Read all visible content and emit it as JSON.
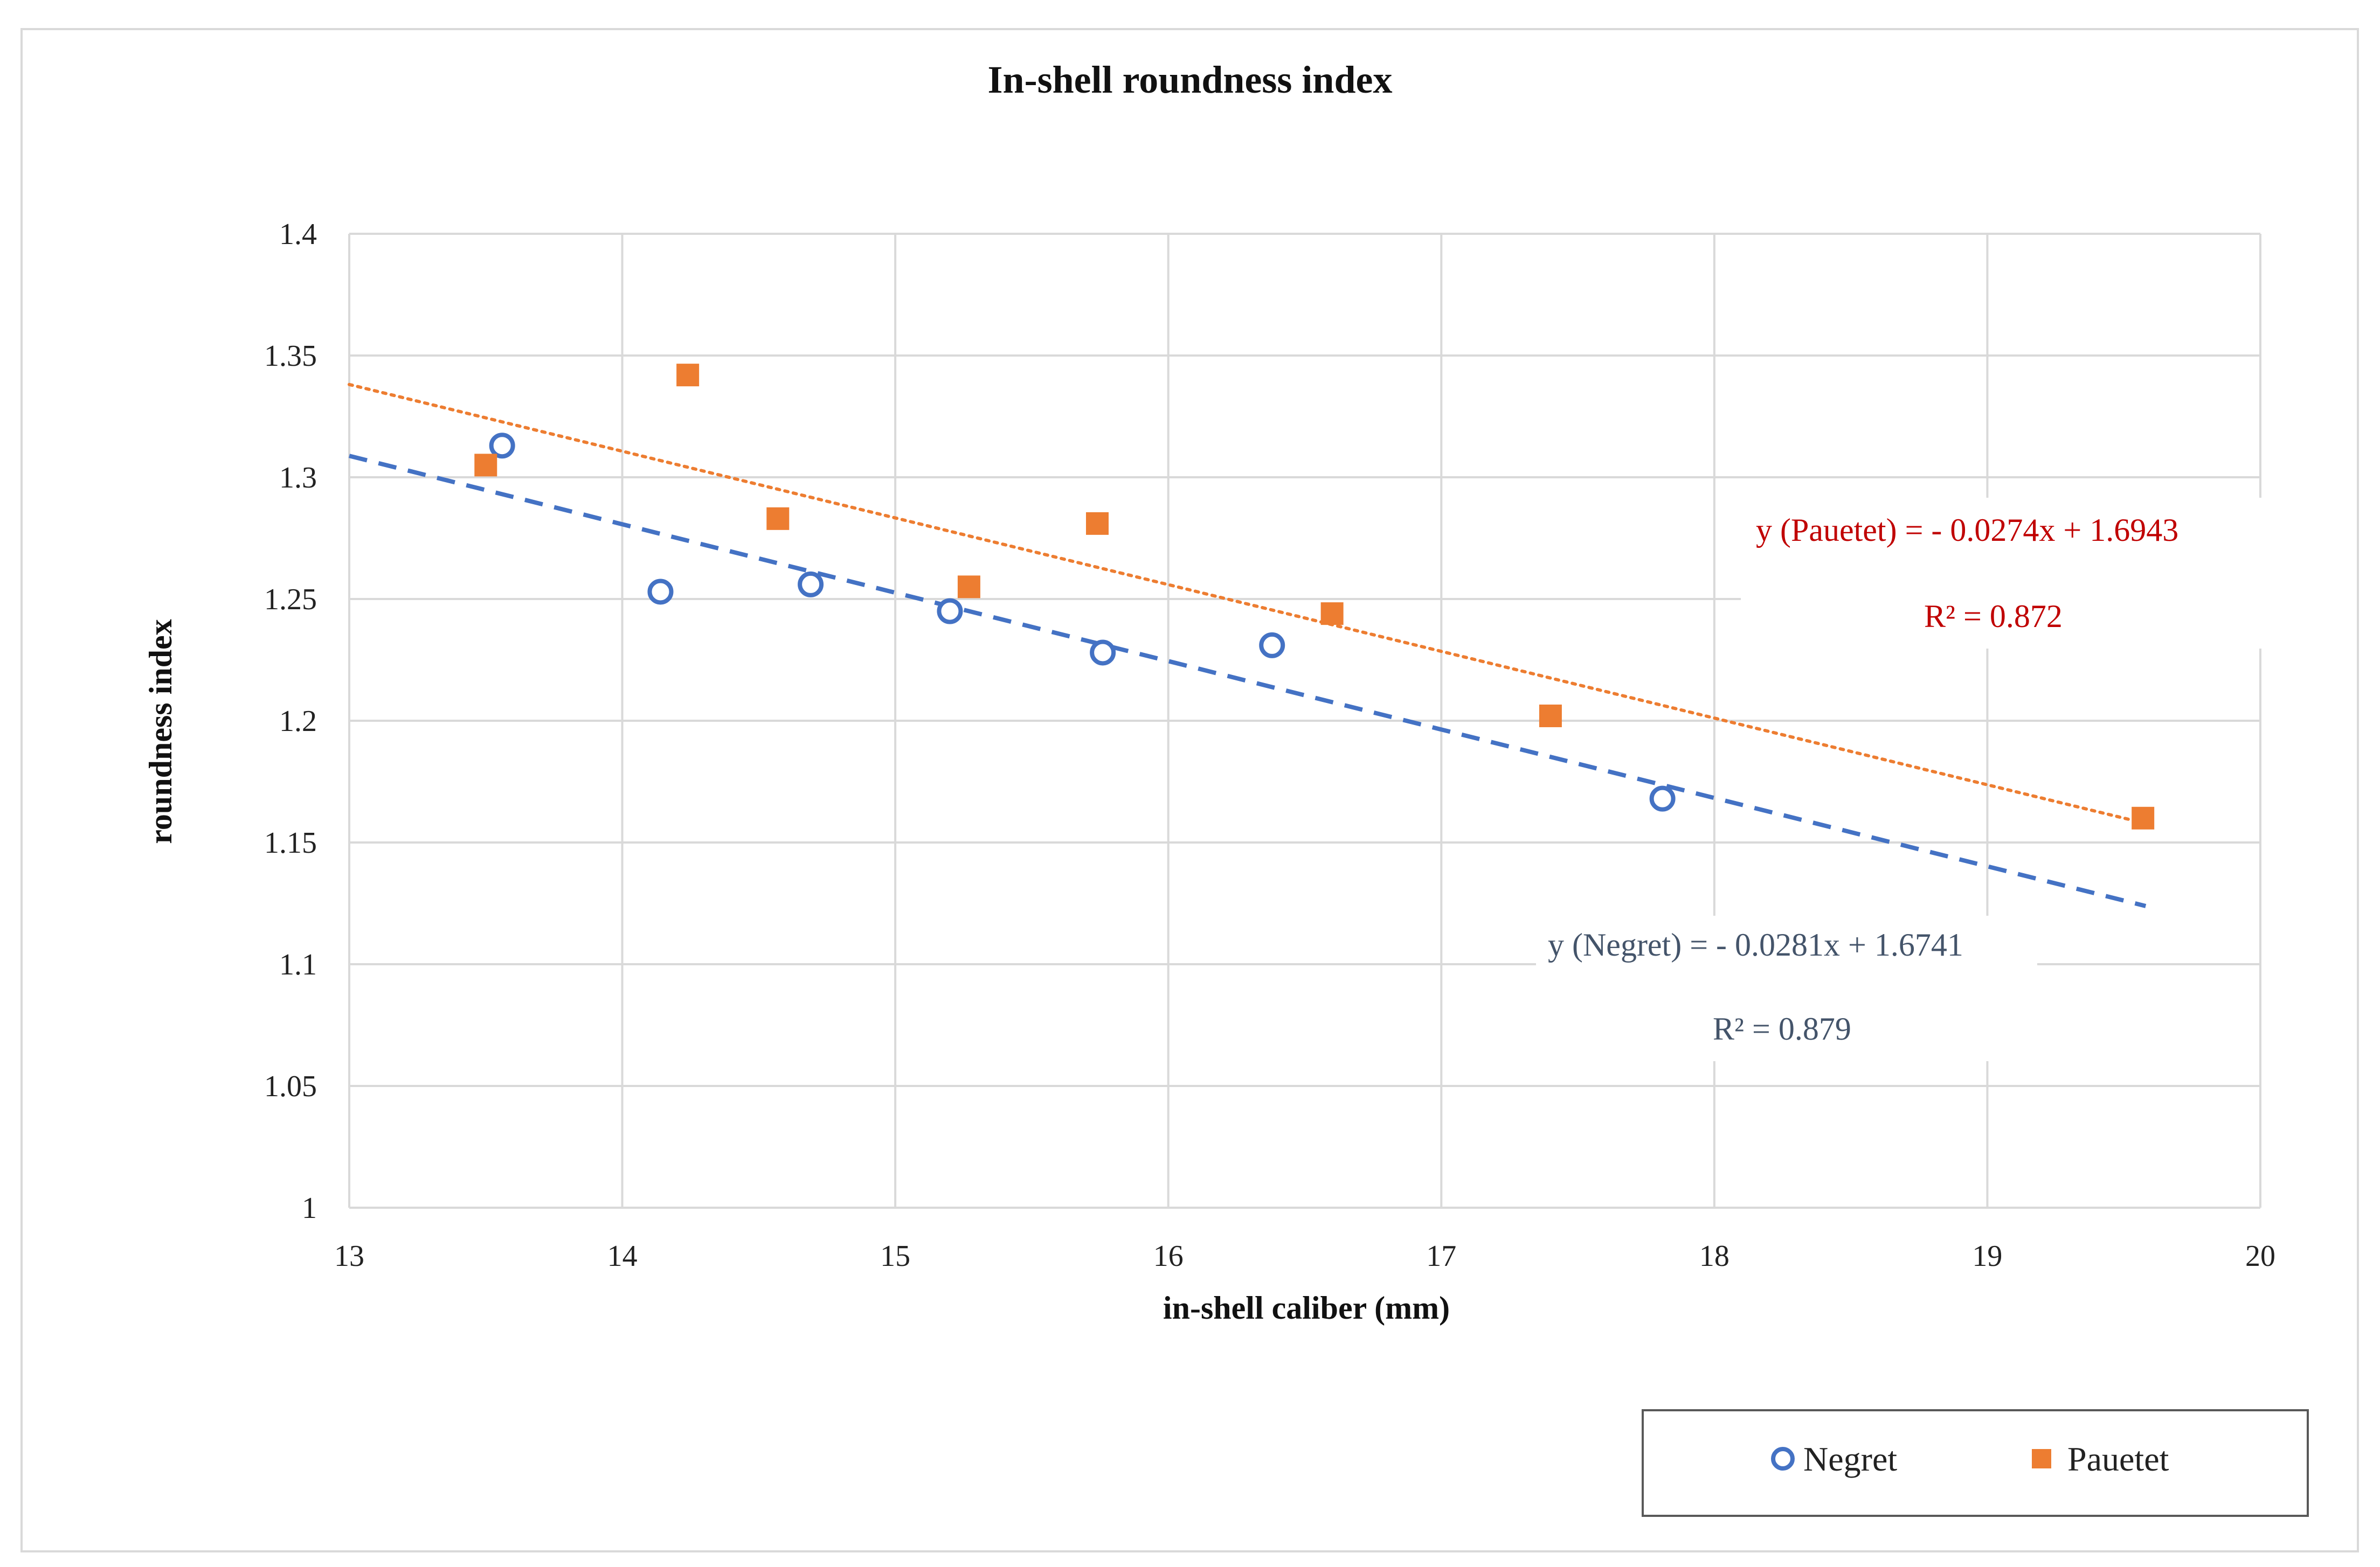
{
  "chart_data": {
    "type": "scatter",
    "title": "In-shell roundness index",
    "xlabel": "in-shell caliber (mm)",
    "ylabel": "roundness  index",
    "xlim": [
      13,
      20
    ],
    "ylim": [
      1,
      1.4
    ],
    "x_ticks": [
      "13",
      "14",
      "15",
      "16",
      "17",
      "18",
      "19",
      "20"
    ],
    "y_ticks": [
      "1",
      "1.05",
      "1.1",
      "1.15",
      "1.2",
      "1.25",
      "1.3",
      "1.35",
      "1.4"
    ],
    "grid": true,
    "legend_position": "bottom-right",
    "series": [
      {
        "name": "Negret",
        "marker": "open-circle",
        "color": "#4472c4",
        "points": [
          {
            "x": 13.56,
            "y": 1.313
          },
          {
            "x": 14.14,
            "y": 1.253
          },
          {
            "x": 14.69,
            "y": 1.256
          },
          {
            "x": 15.2,
            "y": 1.245
          },
          {
            "x": 15.76,
            "y": 1.228
          },
          {
            "x": 16.38,
            "y": 1.231
          },
          {
            "x": 17.81,
            "y": 1.168
          }
        ],
        "trendline": {
          "slope": -0.0281,
          "intercept": 1.6741,
          "x_range": [
            13,
            19.58
          ],
          "style": "dashed"
        },
        "equation_text": "y (Negret) = - 0.0281x + 1.6741",
        "r2_text": "R² = 0.879"
      },
      {
        "name": "Pauetet",
        "marker": "filled-square",
        "color": "#ed7d31",
        "points": [
          {
            "x": 13.5,
            "y": 1.305
          },
          {
            "x": 14.24,
            "y": 1.342
          },
          {
            "x": 14.57,
            "y": 1.283
          },
          {
            "x": 15.27,
            "y": 1.255
          },
          {
            "x": 15.74,
            "y": 1.281
          },
          {
            "x": 16.6,
            "y": 1.244
          },
          {
            "x": 17.4,
            "y": 1.202
          },
          {
            "x": 19.57,
            "y": 1.16
          }
        ],
        "trendline": {
          "slope": -0.0274,
          "intercept": 1.6943,
          "x_range": [
            13,
            19.55
          ],
          "style": "dotted"
        },
        "equation_text": "y (Pauetet)  = - 0.0274x + 1.6943",
        "r2_text": "R² = 0.872"
      }
    ]
  }
}
